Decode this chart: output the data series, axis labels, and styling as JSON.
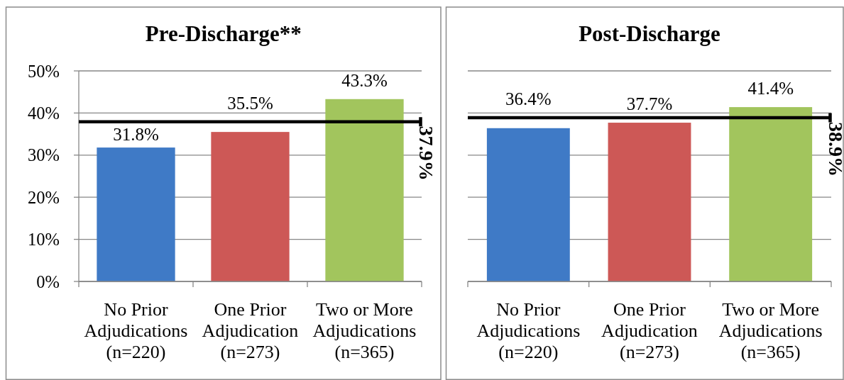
{
  "chart_data": [
    {
      "type": "bar",
      "title": "Pre-Discharge**",
      "categories": [
        "No Prior\nAdjudications\n(n=220)",
        "One Prior\nAdjudication\n(n=273)",
        "Two or More\nAdjudications\n(n=365)"
      ],
      "values": [
        31.8,
        35.5,
        43.3
      ],
      "colors": [
        "#3f7ac6",
        "#cd5856",
        "#a2c55d"
      ],
      "value_labels": [
        "31.8%",
        "35.5%",
        "43.3%"
      ],
      "ylim": [
        0,
        50
      ],
      "yticks": [
        {
          "value": 0,
          "label": "0%"
        },
        {
          "value": 10,
          "label": "10%"
        },
        {
          "value": 20,
          "label": "20%"
        },
        {
          "value": 30,
          "label": "30%"
        },
        {
          "value": 40,
          "label": "40%"
        },
        {
          "value": 50,
          "label": "50%"
        }
      ],
      "grid": "y",
      "ref_lines": [
        {
          "axis": "y",
          "value": 37.9,
          "label": "37.9%",
          "color": "#000000"
        }
      ]
    },
    {
      "type": "bar",
      "title": "Post-Discharge",
      "categories": [
        "No Prior\nAdjudications\n(n=220)",
        "One Prior\nAdjudication\n(n=273)",
        "Two or More\nAdjudications\n(n=365)"
      ],
      "values": [
        36.4,
        37.7,
        41.4
      ],
      "colors": [
        "#3f7ac6",
        "#cd5856",
        "#a2c55d"
      ],
      "value_labels": [
        "36.4%",
        "37.7%",
        "41.4%"
      ],
      "ylim": [
        0,
        50
      ],
      "yticks": [
        0,
        10,
        20,
        30,
        40,
        50
      ],
      "grid": "y",
      "tick_labels": "x",
      "ref_lines": [
        {
          "axis": "y",
          "value": 38.9,
          "label": "38.9%",
          "color": "#000000"
        }
      ]
    }
  ]
}
